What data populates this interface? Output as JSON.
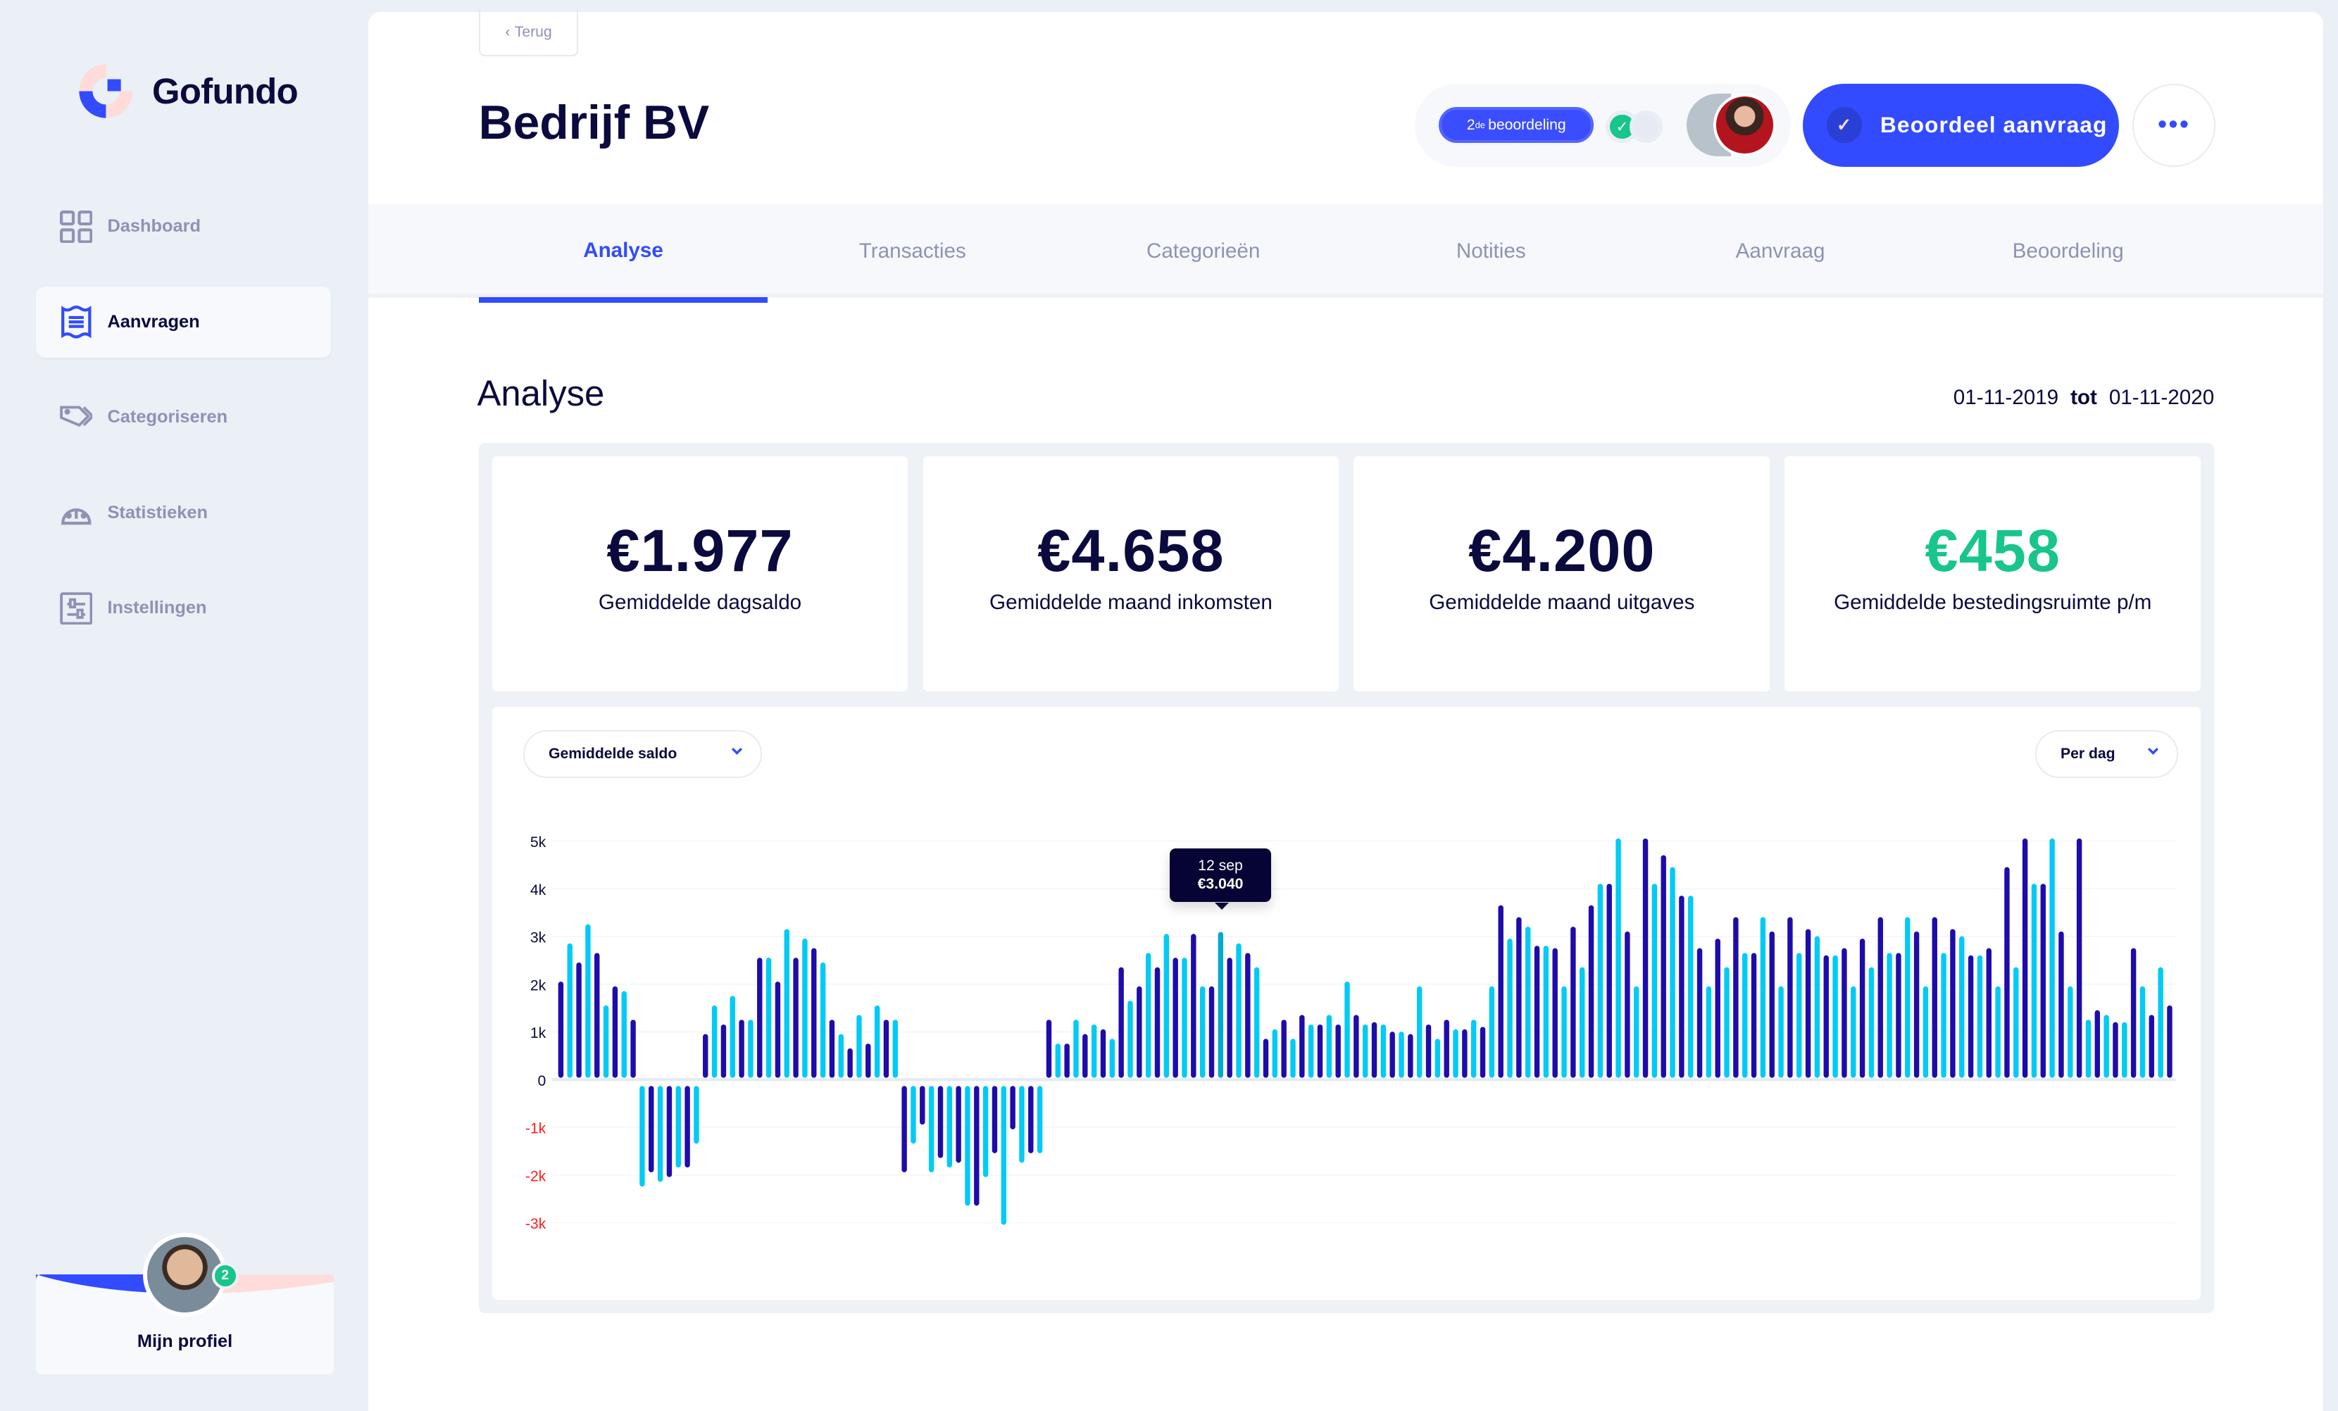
{
  "app": {
    "brand": "Gofundo"
  },
  "sidebar": {
    "items": [
      {
        "label": "Dashboard",
        "icon": "dashboard-grid-icon",
        "active": false
      },
      {
        "label": "Aanvragen",
        "icon": "receipt-icon",
        "active": true
      },
      {
        "label": "Categoriseren",
        "icon": "tags-icon",
        "active": false
      },
      {
        "label": "Statistieken",
        "icon": "gauge-icon",
        "active": false
      },
      {
        "label": "Instellingen",
        "icon": "sliders-icon",
        "active": false
      }
    ],
    "profile": {
      "label": "Mijn profiel",
      "badge": "2"
    }
  },
  "header": {
    "back": "Terug",
    "title": "Bedrijf BV",
    "review_round_num": "2",
    "review_round_sup": "de",
    "review_round_text": "beoordeling",
    "primary": "Beoordeel aanvraag",
    "more": "•••"
  },
  "tabs": [
    {
      "label": "Analyse",
      "active": true
    },
    {
      "label": "Transacties"
    },
    {
      "label": "Categorieën"
    },
    {
      "label": "Notities"
    },
    {
      "label": "Aanvraag"
    },
    {
      "label": "Beoordeling"
    }
  ],
  "analyse": {
    "heading": "Analyse",
    "from": "01-11-2019",
    "sep": "tot",
    "to": "01-11-2020",
    "stats": [
      {
        "value": "€1.977",
        "label": "Gemiddelde dagsaldo",
        "color": "#0b0a3e"
      },
      {
        "value": "€4.658",
        "label": "Gemiddelde maand inkomsten",
        "color": "#0b0a3e"
      },
      {
        "value": "€4.200",
        "label": "Gemiddelde maand uitgaves",
        "color": "#0b0a3e"
      },
      {
        "value": "€458",
        "label": "Gemiddelde bestedingsruimte p/m",
        "color": "#18c58a"
      }
    ],
    "metric_select": "Gemiddelde saldo",
    "period_select": "Per dag"
  },
  "colors": {
    "accent": "#324bff",
    "bar_dark": "#1e0caa",
    "bar_light": "#00cbf5",
    "bar_highlight": "#00a9d4",
    "negative_label": "#ff1f1f",
    "positive": "#18c58a"
  },
  "chart_data": {
    "type": "bar",
    "ylim": [
      -3000,
      5000
    ],
    "yticks": [
      {
        "v": 5000,
        "t": "5k"
      },
      {
        "v": 4000,
        "t": "4k"
      },
      {
        "v": 3000,
        "t": "3k"
      },
      {
        "v": 2000,
        "t": "2k"
      },
      {
        "v": 1000,
        "t": "1k"
      },
      {
        "v": 0,
        "t": "0"
      },
      {
        "v": -1000,
        "t": "-1k"
      },
      {
        "v": -2000,
        "t": "-2k"
      },
      {
        "v": -3000,
        "t": "-3k"
      }
    ],
    "grid": true,
    "tooltip": {
      "index": 73,
      "date": "12 sep",
      "value": "€3.040"
    },
    "values": [
      2000,
      2800,
      2400,
      3200,
      2600,
      1500,
      1900,
      1800,
      1200,
      -2000,
      -1700,
      -1900,
      -1800,
      -1600,
      -1600,
      -1100,
      900,
      1500,
      1100,
      1700,
      1200,
      1200,
      2500,
      2500,
      2000,
      3100,
      2500,
      2900,
      2700,
      2400,
      1200,
      900,
      600,
      1300,
      700,
      1500,
      1200,
      1200,
      -1700,
      -1100,
      -700,
      -1700,
      -1400,
      -1600,
      -1500,
      -2400,
      -2400,
      -1800,
      -1300,
      -2800,
      -800,
      -1500,
      -1300,
      -1300,
      1200,
      700,
      700,
      1200,
      900,
      1100,
      1000,
      800,
      2300,
      1600,
      1900,
      2600,
      2300,
      3000,
      2500,
      2500,
      3000,
      1900,
      1900,
      3040,
      2500,
      2800,
      2600,
      2300,
      800,
      1000,
      1200,
      800,
      1300,
      1100,
      1100,
      1300,
      1100,
      2000,
      1300,
      1100,
      1150,
      1100,
      950,
      950,
      900,
      1900,
      1100,
      800,
      1200,
      1000,
      1000,
      1200,
      1050,
      1900,
      3600,
      2900,
      3350,
      3150,
      2750,
      2750,
      2700,
      1900,
      3150,
      2300,
      3600,
      4050,
      4050,
      5000,
      3050,
      1900,
      5000,
      4050,
      4650,
      4400,
      3800,
      3800,
      2700,
      1900,
      2900,
      2300,
      3350,
      2600,
      2600,
      3350,
      3050,
      1900,
      3350,
      2600,
      3100,
      2950,
      2550,
      2550,
      2700,
      1900,
      2900,
      2300,
      3350,
      2600,
      2600,
      3350,
      3050,
      1900,
      3350,
      2600,
      3100,
      2950,
      2550,
      2550,
      2700,
      1900,
      4400,
      2300,
      5000,
      4050,
      4050,
      5000,
      3050,
      1900,
      5000,
      1200,
      1400,
      1300,
      1150,
      1150,
      2700,
      1900,
      1300,
      2300,
      1500
    ]
  }
}
